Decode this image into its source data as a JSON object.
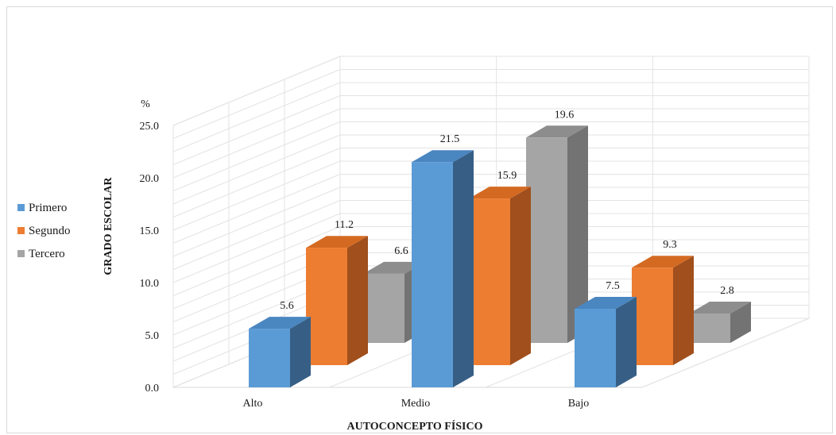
{
  "chart_data": {
    "type": "bar",
    "title": "",
    "xlabel": "AUTOCONCEPTO FÍSICO",
    "ylabel": "GRADO ESCOLAR",
    "yunit": "%",
    "ylim": [
      0,
      25
    ],
    "yticks": [
      "0.0",
      "5.0",
      "10.0",
      "15.0",
      "20.0",
      "25.0"
    ],
    "categories": [
      "Alto",
      "Medio",
      "Bajo"
    ],
    "series": [
      {
        "name": "Primero",
        "values": [
          5.6,
          21.5,
          7.5
        ],
        "labels": [
          "5.6",
          "21.5",
          "7.5"
        ]
      },
      {
        "name": "Segundo",
        "values": [
          11.2,
          15.9,
          9.3
        ],
        "labels": [
          "11.2",
          "15.9",
          "9.3"
        ]
      },
      {
        "name": "Tercero",
        "values": [
          6.6,
          19.6,
          2.8
        ],
        "labels": [
          "6.6",
          "19.6",
          "2.8"
        ]
      }
    ],
    "colors": {
      "Primero": {
        "front": "#5b9bd5",
        "side": "#375f85",
        "top": "#4a86c0"
      },
      "Segundo": {
        "front": "#ed7d31",
        "side": "#a04f1d",
        "top": "#d46a22"
      },
      "Tercero": {
        "front": "#a5a5a5",
        "side": "#737373",
        "top": "#8d8d8d"
      }
    },
    "legend": "left",
    "grid": true,
    "view": "3d-clustered-column"
  }
}
